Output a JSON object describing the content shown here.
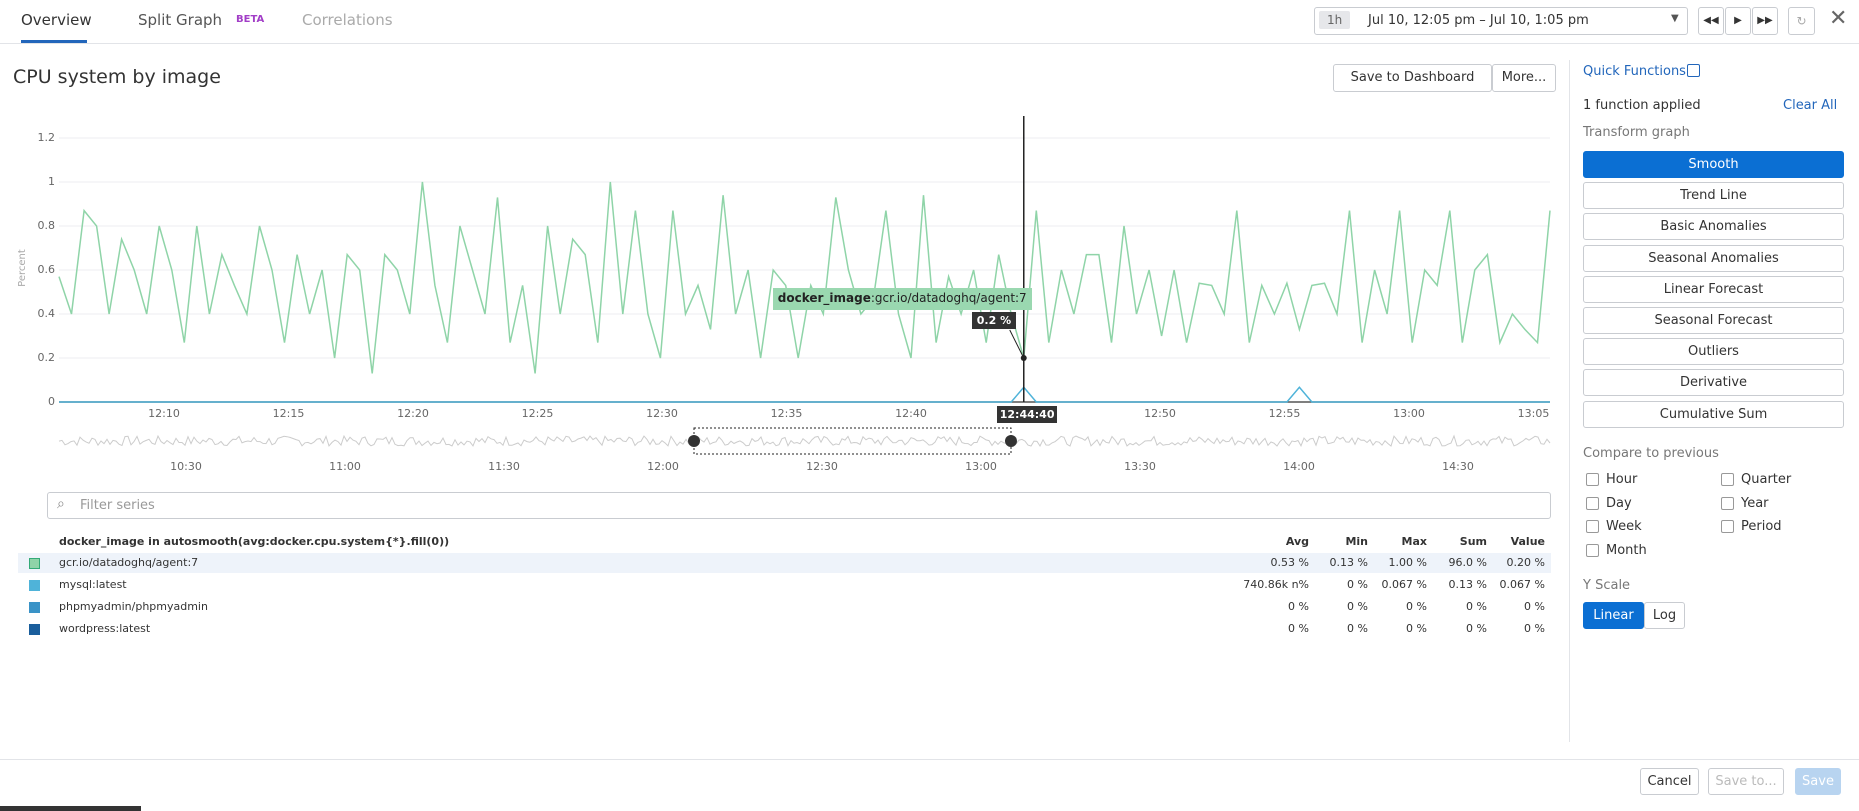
{
  "tabs": {
    "items": [
      "Overview",
      "Split Graph",
      "Correlations"
    ],
    "beta": "BETA"
  },
  "time_range": {
    "preset": "1h",
    "label": "Jul 10, 12:05 pm – Jul 10, 1:05 pm"
  },
  "graph": {
    "title": "CPU system by image",
    "save_dashboard": "Save to Dashboard",
    "more": "More..."
  },
  "chart": {
    "type": "line",
    "y_label": "Percent",
    "ylim": [
      0,
      1.3
    ],
    "yticks": [
      0,
      0.2,
      0.4,
      0.6,
      0.8,
      1,
      1.2
    ],
    "grid": true,
    "xticks": [
      "12:10",
      "12:15",
      "12:20",
      "12:25",
      "12:30",
      "12:35",
      "12:40",
      "12:45",
      "12:50",
      "12:55",
      "13:00",
      "13:05"
    ],
    "series": [
      {
        "name": "gcr.io/datadoghq/agent:7",
        "color": "#8fd4a8",
        "values": [
          0.57,
          0.4,
          0.87,
          0.8,
          0.4,
          0.74,
          0.6,
          0.4,
          0.8,
          0.6,
          0.27,
          0.8,
          0.4,
          0.67,
          0.53,
          0.4,
          0.8,
          0.6,
          0.27,
          0.67,
          0.4,
          0.6,
          0.2,
          0.67,
          0.6,
          0.13,
          0.67,
          0.6,
          0.4,
          1.0,
          0.53,
          0.27,
          0.8,
          0.6,
          0.4,
          0.93,
          0.27,
          0.53,
          0.13,
          0.8,
          0.4,
          0.74,
          0.67,
          0.27,
          1.0,
          0.4,
          0.87,
          0.4,
          0.2,
          0.87,
          0.4,
          0.53,
          0.33,
          0.94,
          0.4,
          0.6,
          0.2,
          0.6,
          0.53,
          0.2,
          0.53,
          0.4,
          0.93,
          0.6,
          0.4,
          0.47,
          0.87,
          0.4,
          0.2,
          0.94,
          0.27,
          0.57,
          0.4,
          0.6,
          0.27,
          0.67,
          0.4,
          0.2,
          0.87,
          0.27,
          0.6,
          0.4,
          0.67,
          0.67,
          0.27,
          0.8,
          0.4,
          0.6,
          0.3,
          0.6,
          0.27,
          0.54,
          0.53,
          0.4,
          0.87,
          0.27,
          0.53,
          0.4,
          0.54,
          0.33,
          0.53,
          0.54,
          0.4,
          0.87,
          0.27,
          0.6,
          0.4,
          0.87,
          0.27,
          0.6,
          0.53,
          0.87,
          0.27,
          0.6,
          0.67,
          0.27,
          0.4,
          0.33,
          0.27,
          0.87
        ]
      },
      {
        "name": "mysql:latest",
        "color": "#4fb3d9",
        "values": [
          0,
          0,
          0,
          0,
          0,
          0,
          0,
          0,
          0,
          0,
          0,
          0,
          0,
          0,
          0,
          0,
          0,
          0,
          0,
          0,
          0,
          0,
          0,
          0,
          0,
          0,
          0,
          0,
          0,
          0,
          0,
          0,
          0,
          0,
          0,
          0,
          0,
          0,
          0,
          0,
          0,
          0,
          0,
          0,
          0,
          0,
          0,
          0,
          0,
          0,
          0,
          0,
          0,
          0,
          0,
          0,
          0,
          0,
          0,
          0,
          0,
          0,
          0,
          0,
          0,
          0,
          0,
          0,
          0,
          0,
          0,
          0,
          0,
          0,
          0,
          0,
          0,
          0.067,
          0,
          0,
          0,
          0,
          0,
          0,
          0,
          0,
          0,
          0,
          0,
          0,
          0,
          0,
          0,
          0,
          0,
          0,
          0,
          0,
          0,
          0.067,
          0,
          0,
          0,
          0,
          0,
          0,
          0,
          0,
          0,
          0,
          0,
          0,
          0,
          0,
          0,
          0,
          0,
          0,
          0,
          0
        ]
      }
    ],
    "tooltip": {
      "tag": "docker_image",
      "text": ":gcr.io/datadoghq/agent:7",
      "value_label": "0.2 %",
      "time": "12:44:40"
    },
    "overview_ticks": [
      "10:30",
      "11:00",
      "11:30",
      "12:00",
      "12:30",
      "13:00",
      "13:30",
      "14:00",
      "14:30"
    ]
  },
  "legend": {
    "filter": "Filter series",
    "query": "docker_image in autosmooth(avg:docker.cpu.system{*}.fill(0))",
    "columns": [
      "Avg",
      "Min",
      "Max",
      "Sum",
      "Value"
    ],
    "rows": [
      {
        "color": "#8fd4a8",
        "name": "gcr.io/datadoghq/agent:7",
        "cells": [
          "0.53 %",
          "0.13 %",
          "1.00 %",
          "96.0 %",
          "0.20 %"
        ]
      },
      {
        "color": "#4fb3d9",
        "name": "mysql:latest",
        "cells": [
          "740.86k n%",
          "0 %",
          "0.067 %",
          "0.13 %",
          "0.067 %"
        ]
      },
      {
        "color": "#3a93c7",
        "name": "phpmyadmin/phpmyadmin",
        "cells": [
          "0 %",
          "0 %",
          "0 %",
          "0 %",
          "0 %"
        ]
      },
      {
        "color": "#1a5e9c",
        "name": "wordpress:latest",
        "cells": [
          "0 %",
          "0 %",
          "0 %",
          "0 %",
          "0 %"
        ]
      }
    ]
  },
  "side": {
    "title": "Quick Functions",
    "applied": "1 function applied",
    "clear": "Clear All",
    "transform": "Transform graph",
    "functions": [
      "Smooth",
      "Trend Line",
      "Basic Anomalies",
      "Seasonal Anomalies",
      "Linear Forecast",
      "Seasonal Forecast",
      "Outliers",
      "Derivative",
      "Cumulative Sum"
    ],
    "compare": "Compare to previous",
    "periods": [
      "Hour",
      "Quarter",
      "Day",
      "Year",
      "Week",
      "Period",
      "Month"
    ],
    "yscale": "Y Scale",
    "scales": [
      "Linear",
      "Log"
    ]
  },
  "footer": {
    "cancel": "Cancel",
    "save_to": "Save to...",
    "save": "Save"
  }
}
